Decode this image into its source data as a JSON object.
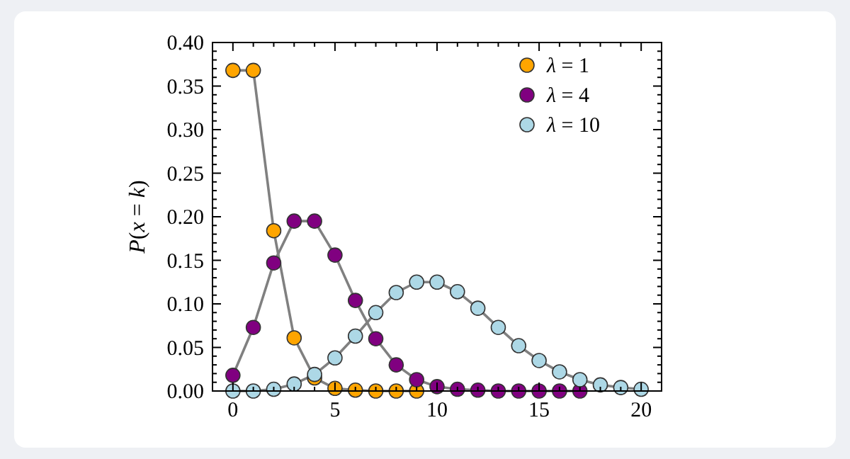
{
  "chart_data": {
    "type": "line",
    "ylabel": "P(x = k)",
    "xlim": [
      -1,
      21
    ],
    "xticks": [
      0,
      5,
      10,
      15,
      20
    ],
    "ylim": [
      0,
      0.4
    ],
    "yticks": [
      {
        "value": 0,
        "label": "0.00"
      },
      {
        "value": 0.05,
        "label": "0.05"
      },
      {
        "value": 0.1,
        "label": "0.10"
      },
      {
        "value": 0.15,
        "label": "0.15"
      },
      {
        "value": 0.2,
        "label": "0.20"
      },
      {
        "value": 0.25,
        "label": "0.25"
      },
      {
        "value": 0.3,
        "label": "0.30"
      },
      {
        "value": 0.35,
        "label": "0.35"
      },
      {
        "value": 0.4,
        "label": "0.40"
      }
    ],
    "marker": "circle",
    "legend": "top right",
    "grid": false,
    "series": [
      {
        "name": "λ = 1",
        "color": "#ffa500",
        "x": [
          0,
          1,
          2,
          3,
          4,
          5,
          6,
          7,
          8,
          9
        ],
        "values": [
          0.368,
          0.368,
          0.184,
          0.061,
          0.015,
          0.003,
          0.001,
          0,
          0,
          0
        ]
      },
      {
        "name": "λ = 4",
        "color": "#800080",
        "x": [
          0,
          1,
          2,
          3,
          4,
          5,
          6,
          7,
          8,
          9,
          10,
          11,
          12,
          13,
          14,
          15,
          16,
          17
        ],
        "values": [
          0.018,
          0.073,
          0.147,
          0.195,
          0.195,
          0.156,
          0.104,
          0.06,
          0.03,
          0.013,
          0.005,
          0.002,
          0.001,
          0,
          0,
          0,
          0,
          0
        ]
      },
      {
        "name": "λ = 10",
        "color": "#add8e6",
        "x": [
          0,
          1,
          2,
          3,
          4,
          5,
          6,
          7,
          8,
          9,
          10,
          11,
          12,
          13,
          14,
          15,
          16,
          17,
          18,
          19,
          20
        ],
        "values": [
          0,
          0,
          0.002,
          0.008,
          0.019,
          0.038,
          0.063,
          0.09,
          0.113,
          0.125,
          0.125,
          0.114,
          0.095,
          0.073,
          0.052,
          0.035,
          0.022,
          0.013,
          0.007,
          0.004,
          0.002
        ]
      }
    ]
  }
}
